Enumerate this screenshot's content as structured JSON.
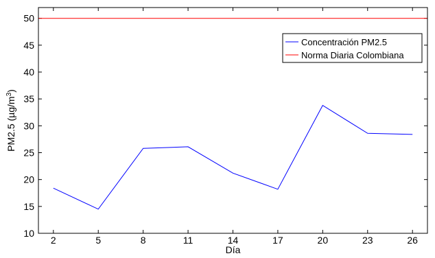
{
  "chart_data": {
    "type": "line",
    "xlabel": "Día",
    "ylabel": "PM2.5 (µg/m",
    "ylabel_sup": "3",
    "ylabel_end": ")",
    "xlim": [
      1,
      27
    ],
    "ylim": [
      10,
      52
    ],
    "xticks": [
      2,
      5,
      8,
      11,
      14,
      17,
      20,
      23,
      26
    ],
    "yticks": [
      10,
      15,
      20,
      25,
      30,
      35,
      40,
      45,
      50
    ],
    "grid": false,
    "legend_position": "top-right",
    "series": [
      {
        "name": "Concentración PM2.5",
        "color": "#0000ff",
        "x": [
          2,
          5,
          8,
          11,
          14,
          17,
          20,
          23,
          26
        ],
        "y": [
          18.4,
          14.5,
          25.8,
          26.1,
          21.2,
          18.2,
          33.8,
          28.6,
          28.4
        ]
      },
      {
        "name": "Norma Diaria Colombiana",
        "color": "#ff0000",
        "x": [
          1,
          27
        ],
        "y": [
          50,
          50
        ]
      }
    ]
  }
}
